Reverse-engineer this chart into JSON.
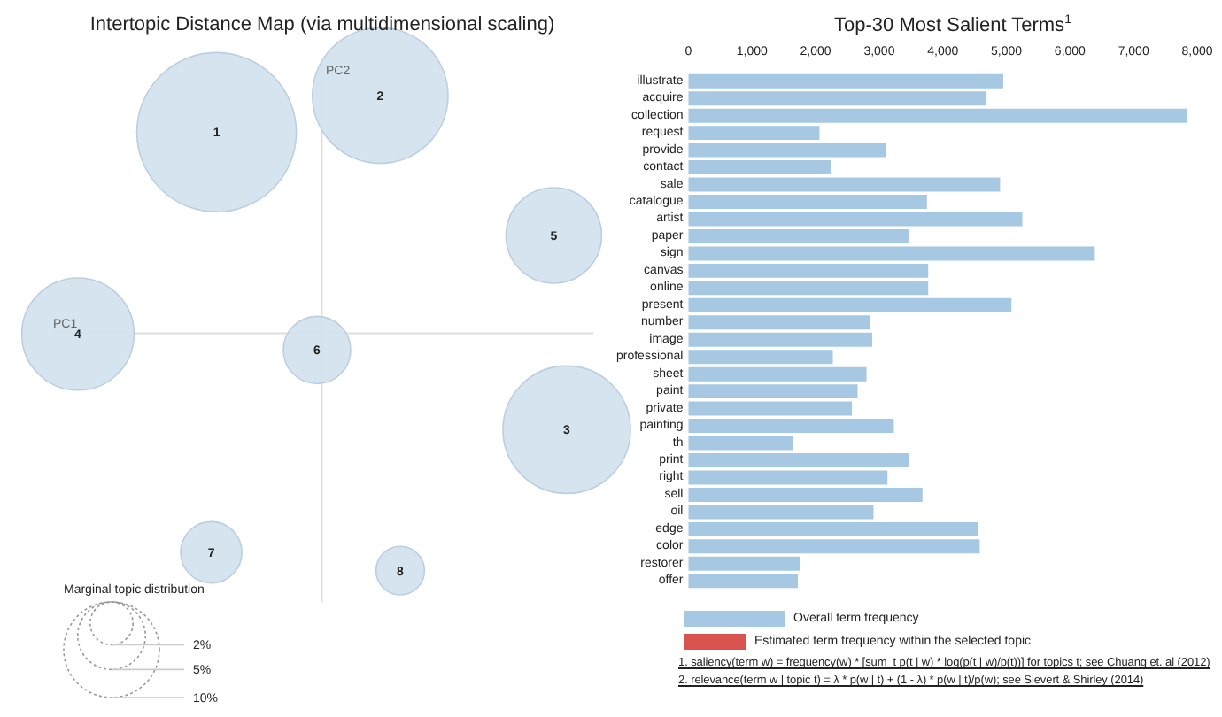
{
  "chart_data": [
    {
      "type": "other",
      "title": "Intertopic Distance Map (via multidimensional scaling)",
      "xlabel": "PC1",
      "ylabel": "PC2",
      "legend_title": "Marginal topic distribution",
      "annotations": [
        "1",
        "2",
        "3",
        "4",
        "5",
        "6",
        "7",
        "8",
        "2%",
        "5%",
        "10%"
      ]
    },
    {
      "type": "bar",
      "orientation": "horizontal",
      "title": "Top-30 Most Salient Terms$^{1}$",
      "categories": [
        "illustrate",
        "acquire",
        "collection",
        "request",
        "provide",
        "contact",
        "sale",
        "catalogue",
        "artist",
        "paper",
        "sign",
        "canvas",
        "online",
        "present",
        "number",
        "image",
        "professional",
        "sheet",
        "paint",
        "private",
        "painting",
        "th",
        "print",
        "right",
        "sell",
        "oil",
        "edge",
        "color",
        "restorer",
        "offer"
      ],
      "series": [
        {
          "name": "Overall term frequency",
          "color": "#a6c8e2",
          "values": [
            4950,
            4680,
            7840,
            2060,
            3100,
            2250,
            4900,
            3750,
            5250,
            3460,
            6390,
            3770,
            3770,
            5080,
            2860,
            2890,
            2270,
            2800,
            2660,
            2570,
            3230,
            1650,
            3460,
            3130,
            3680,
            2910,
            4560,
            4580,
            1750,
            1720
          ]
        }
      ],
      "xlim": [
        0,
        8000
      ],
      "xticks": [
        0,
        {
          "value": 1000,
          "label": "1,000"
        },
        {
          "value": 2000,
          "label": "2,000"
        },
        {
          "value": 3000,
          "label": "3,000"
        },
        {
          "value": 4000,
          "label": "4,000"
        },
        {
          "value": 5000,
          "label": "5,000"
        },
        {
          "value": 6000,
          "label": "6,000"
        },
        {
          "value": 7000,
          "label": "7,000"
        },
        {
          "value": 8000,
          "label": "8,000"
        }
      ],
      "legend": "bottom",
      "annotations": [
        "Estimated term frequency within the selected topic",
        "1. saliency(term w) = frequency(w) * [sum_t p(t | w) * log(p(t | w)/p(t))] for topics t; see Chuang et. al (2012)",
        "2. relevance(term w | topic t) = λ * p(w | t) + (1 - λ) * p(w | t)/p(w); see Sievert & Shirley (2014)"
      ]
    }
  ]
}
